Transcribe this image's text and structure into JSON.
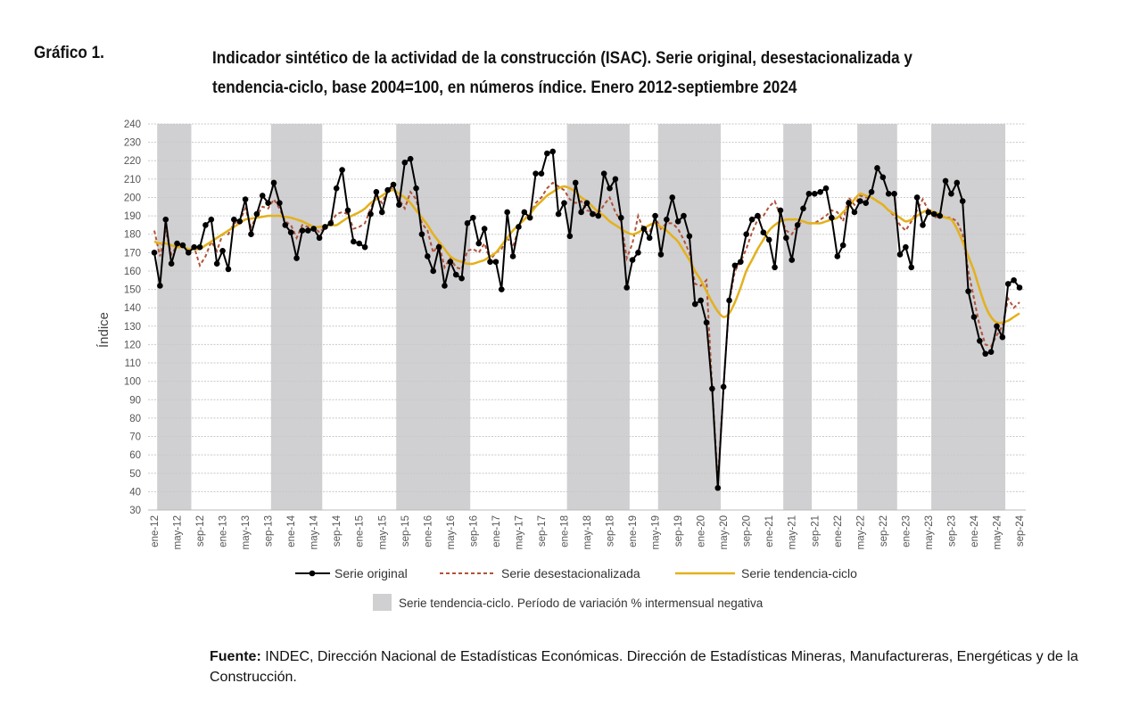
{
  "figure_label": "Gráfico 1.",
  "title_lines": [
    "Indicador sintético de la actividad de la construcción (ISAC). Serie original, desestacionalizada y",
    "tendencia-ciclo, base 2004=100, en números índice. Enero 2012-septiembre 2024"
  ],
  "source": {
    "label": "Fuente:",
    "text": " INDEC, Dirección Nacional de Estadísticas Económicas. Dirección de Estadísticas Mineras, Manufactureras, Energéticas y de la Construcción."
  },
  "chart_data": {
    "type": "line",
    "ylabel": "Índice",
    "xlabel": "",
    "ylim": [
      30,
      240
    ],
    "y_ticks": [
      30,
      40,
      50,
      60,
      70,
      80,
      90,
      100,
      110,
      120,
      130,
      140,
      150,
      160,
      170,
      180,
      190,
      200,
      210,
      220,
      230,
      240
    ],
    "grid": "horizontal dashed",
    "frequency": "monthly",
    "x_range": [
      "ene-12",
      "sep-24"
    ],
    "x_tick_labels": [
      "ene-12",
      "may-12",
      "sep-12",
      "ene-13",
      "may-13",
      "sep-13",
      "ene-14",
      "may-14",
      "sep-14",
      "ene-15",
      "may-15",
      "sep-15",
      "ene-16",
      "may-16",
      "sep-16",
      "ene-17",
      "may-17",
      "sep-17",
      "ene-18",
      "may-18",
      "sep-18",
      "ene-19",
      "may-19",
      "sep-19",
      "ene-20",
      "may-20",
      "sep-20",
      "ene-21",
      "may-21",
      "sep-21",
      "ene-22",
      "may-22",
      "sep-22",
      "ene-23",
      "may-23",
      "sep-23",
      "ene-24",
      "may-24",
      "sep-24"
    ],
    "legend_position": "bottom",
    "series": [
      {
        "name": "Serie original",
        "color": "#000000",
        "style": "solid-markers",
        "values": [
          170,
          152,
          188,
          164,
          175,
          174,
          170,
          173,
          173,
          185,
          188,
          164,
          171,
          161,
          188,
          187,
          199,
          180,
          191,
          201,
          197,
          208,
          197,
          185,
          181,
          167,
          182,
          182,
          183,
          178,
          184,
          186,
          205,
          215,
          193,
          176,
          175,
          173,
          191,
          203,
          192,
          204,
          207,
          196,
          219,
          221,
          205,
          180,
          168,
          160,
          173,
          152,
          165,
          158,
          156,
          186,
          189,
          175,
          183,
          165,
          165,
          150,
          192,
          168,
          184,
          192,
          189,
          213,
          213,
          224,
          225,
          191,
          197,
          179,
          208,
          192,
          197,
          191,
          190,
          213,
          205,
          210,
          189,
          151,
          166,
          170,
          183,
          178,
          190,
          169,
          188,
          200,
          187,
          190,
          179,
          142,
          144,
          132,
          96,
          42,
          97,
          144,
          163,
          165,
          180,
          188,
          190,
          181,
          177,
          162,
          193,
          178,
          166,
          185,
          194,
          202,
          202,
          203,
          205,
          189,
          168,
          174,
          197,
          192,
          198,
          197,
          203,
          216,
          211,
          202,
          202,
          169,
          173,
          162,
          200,
          185,
          192,
          191,
          190,
          209,
          202,
          208,
          198,
          149,
          135,
          122,
          115,
          116,
          130,
          124,
          153,
          155,
          151
        ]
      },
      {
        "name": "Serie desestacionalizada",
        "color": "#b0533a",
        "style": "dashed",
        "values": [
          182,
          168,
          182,
          169,
          174,
          174,
          171,
          173,
          163,
          168,
          176,
          171,
          180,
          180,
          186,
          187,
          194,
          184,
          190,
          195,
          194,
          199,
          194,
          187,
          185,
          178,
          185,
          184,
          184,
          181,
          184,
          186,
          191,
          192,
          191,
          183,
          184,
          186,
          194,
          201,
          197,
          204,
          205,
          199,
          194,
          203,
          199,
          186,
          182,
          170,
          175,
          162,
          167,
          162,
          161,
          171,
          172,
          170,
          175,
          166,
          170,
          172,
          178,
          173,
          183,
          189,
          190,
          197,
          200,
          205,
          208,
          206,
          204,
          199,
          197,
          198,
          193,
          192,
          191,
          196,
          200,
          192,
          187,
          167,
          175,
          190,
          182,
          181,
          189,
          183,
          186,
          186,
          183,
          177,
          170,
          153,
          152,
          155,
          97,
          45,
          97,
          143,
          160,
          165,
          172,
          181,
          188,
          190,
          195,
          198,
          190,
          182,
          180,
          185,
          187,
          186,
          186,
          188,
          190,
          193,
          192,
          187,
          200,
          196,
          201,
          200,
          200,
          198,
          196,
          193,
          190,
          185,
          182,
          187,
          193,
          199,
          193,
          189,
          190,
          189,
          189,
          187,
          180,
          160,
          145,
          130,
          120,
          119,
          125,
          130,
          145,
          140,
          143
        ]
      },
      {
        "name": "Serie tendencia-ciclo",
        "color": "#e3b11c",
        "style": "solid",
        "values": [
          176,
          175,
          175,
          174,
          173,
          173,
          172,
          172,
          172,
          174,
          176,
          178,
          180,
          182,
          184,
          186,
          188,
          188.5,
          189,
          189.5,
          190,
          190,
          190,
          189.5,
          189,
          188,
          187,
          185.5,
          184,
          184,
          184.5,
          185,
          185,
          187,
          189,
          190.5,
          192,
          194,
          197,
          199,
          201,
          203,
          204,
          202,
          200,
          197,
          193,
          189,
          185,
          180,
          176,
          172,
          168,
          166,
          165,
          164,
          164,
          165,
          166,
          168,
          170,
          174,
          178,
          182,
          185,
          188,
          191,
          195,
          198,
          201,
          203,
          205,
          206,
          205,
          203,
          200,
          198,
          195,
          192,
          190,
          187,
          185,
          183,
          181,
          180,
          181,
          183,
          185,
          186,
          184,
          182,
          179,
          176,
          171,
          166,
          160,
          155,
          149,
          143,
          138,
          135,
          137,
          143,
          151,
          160,
          166,
          172,
          177,
          182,
          185,
          187,
          188,
          188,
          188,
          187,
          186,
          186,
          186,
          187,
          188,
          189,
          192,
          195,
          199,
          202,
          201,
          200,
          198,
          196,
          193,
          191,
          189,
          187,
          188,
          190,
          192,
          193,
          192,
          191,
          189,
          188,
          183,
          176,
          168,
          160,
          150,
          141,
          135,
          132,
          132,
          133,
          135,
          137
        ]
      }
    ],
    "shaded_periods": [
      [
        "feb-12",
        "jul-12"
      ],
      [
        "oct-13",
        "jun-14"
      ],
      [
        "ago-15",
        "ago-16"
      ],
      [
        "feb-18",
        "dic-18"
      ],
      [
        "jun-19",
        "abr-20"
      ],
      [
        "abr-21",
        "ago-21"
      ],
      [
        "may-22",
        "nov-22"
      ],
      [
        "jun-23",
        "jun-24"
      ]
    ],
    "shaded_periods_legend": "Serie tendencia-ciclo. Período de variación % intermensual negativa",
    "shade_color": "#d0cfd1"
  }
}
